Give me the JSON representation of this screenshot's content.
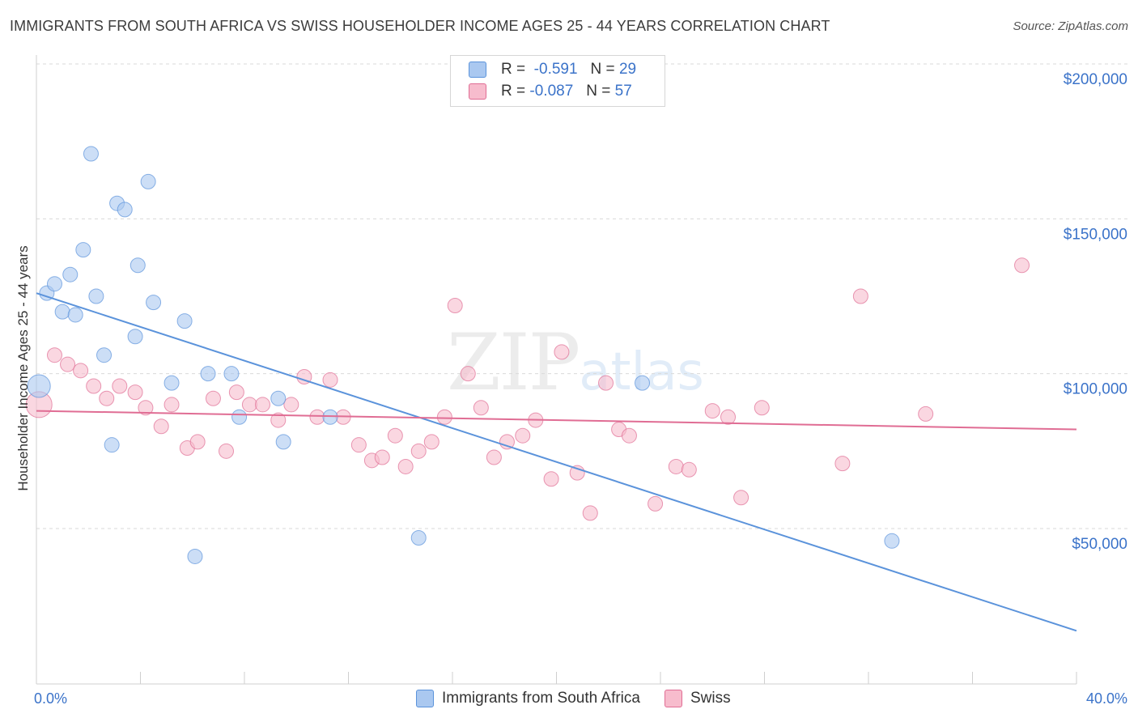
{
  "header": {
    "title": "IMMIGRANTS FROM SOUTH AFRICA VS SWISS HOUSEHOLDER INCOME AGES 25 - 44 YEARS CORRELATION CHART",
    "source": "Source: ZipAtlas.com"
  },
  "watermark": {
    "zip": "ZIP",
    "atlas": "atlas"
  },
  "legend": {
    "rows": [
      {
        "r_label": "R =",
        "r_value": "-0.591",
        "n_label": "N =",
        "n_value": "29",
        "color": "#aac8f0"
      },
      {
        "r_label": "R =",
        "r_value": "-0.087",
        "n_label": "N =",
        "n_value": "57",
        "color": "#f7bccd"
      }
    ]
  },
  "bottom_legend": {
    "items": [
      {
        "label": "Immigrants from South Africa",
        "color": "#aac8f0"
      },
      {
        "label": "Swiss",
        "color": "#f7bccd"
      }
    ]
  },
  "chart_data": {
    "type": "scatter",
    "title": "IMMIGRANTS FROM SOUTH AFRICA VS SWISS HOUSEHOLDER INCOME AGES 25 - 44 YEARS CORRELATION CHART",
    "xlabel": "",
    "ylabel": "Householder Income Ages 25 - 44 years",
    "xlim": [
      0,
      40
    ],
    "ylim": [
      5000,
      210000
    ],
    "x_tick_labels": [
      "0.0%",
      "40.0%"
    ],
    "y_ticks": [
      50000,
      100000,
      150000,
      200000
    ],
    "y_tick_labels": [
      "$50,000",
      "$100,000",
      "$150,000",
      "$200,000"
    ],
    "grid": true,
    "series": [
      {
        "name": "Immigrants from South Africa",
        "color": "#5b93db",
        "fill": "#aac8f0",
        "trend": {
          "x": [
            0,
            40
          ],
          "y": [
            126000,
            17000
          ]
        },
        "points": [
          [
            0.1,
            96000,
            14
          ],
          [
            0.4,
            126000,
            9
          ],
          [
            0.7,
            129000,
            9
          ],
          [
            1.0,
            120000,
            9
          ],
          [
            1.3,
            132000,
            9
          ],
          [
            1.5,
            119000,
            9
          ],
          [
            1.8,
            140000,
            9
          ],
          [
            2.1,
            171000,
            9
          ],
          [
            2.3,
            125000,
            9
          ],
          [
            2.6,
            106000,
            9
          ],
          [
            2.9,
            77000,
            9
          ],
          [
            3.1,
            155000,
            9
          ],
          [
            3.4,
            153000,
            9
          ],
          [
            3.8,
            112000,
            9
          ],
          [
            3.9,
            135000,
            9
          ],
          [
            4.3,
            162000,
            9
          ],
          [
            4.5,
            123000,
            9
          ],
          [
            5.2,
            97000,
            9
          ],
          [
            5.7,
            117000,
            9
          ],
          [
            6.1,
            41000,
            9
          ],
          [
            6.6,
            100000,
            9
          ],
          [
            7.5,
            100000,
            9
          ],
          [
            7.8,
            86000,
            9
          ],
          [
            9.3,
            92000,
            9
          ],
          [
            9.5,
            78000,
            9
          ],
          [
            11.3,
            86000,
            9
          ],
          [
            14.7,
            47000,
            9
          ],
          [
            23.3,
            97000,
            9
          ],
          [
            32.9,
            46000,
            9
          ]
        ]
      },
      {
        "name": "Swiss",
        "color": "#e06d94",
        "fill": "#f7bccd",
        "trend": {
          "x": [
            0,
            40
          ],
          "y": [
            88000,
            82000
          ]
        },
        "points": [
          [
            0.1,
            90000,
            16
          ],
          [
            0.7,
            106000,
            9
          ],
          [
            1.2,
            103000,
            9
          ],
          [
            1.7,
            101000,
            9
          ],
          [
            2.2,
            96000,
            9
          ],
          [
            2.7,
            92000,
            9
          ],
          [
            3.2,
            96000,
            9
          ],
          [
            3.8,
            94000,
            9
          ],
          [
            4.2,
            89000,
            9
          ],
          [
            4.8,
            83000,
            9
          ],
          [
            5.2,
            90000,
            9
          ],
          [
            5.8,
            76000,
            9
          ],
          [
            6.2,
            78000,
            9
          ],
          [
            6.8,
            92000,
            9
          ],
          [
            7.3,
            75000,
            9
          ],
          [
            7.7,
            94000,
            9
          ],
          [
            8.2,
            90000,
            9
          ],
          [
            8.7,
            90000,
            9
          ],
          [
            9.3,
            85000,
            9
          ],
          [
            9.8,
            90000,
            9
          ],
          [
            10.3,
            99000,
            9
          ],
          [
            10.8,
            86000,
            9
          ],
          [
            11.3,
            98000,
            9
          ],
          [
            11.8,
            86000,
            9
          ],
          [
            12.4,
            77000,
            9
          ],
          [
            12.9,
            72000,
            9
          ],
          [
            13.3,
            73000,
            9
          ],
          [
            13.8,
            80000,
            9
          ],
          [
            14.2,
            70000,
            9
          ],
          [
            14.7,
            75000,
            9
          ],
          [
            15.2,
            78000,
            9
          ],
          [
            15.7,
            86000,
            9
          ],
          [
            16.1,
            122000,
            9
          ],
          [
            16.6,
            100000,
            9
          ],
          [
            17.1,
            89000,
            9
          ],
          [
            17.6,
            73000,
            9
          ],
          [
            18.1,
            78000,
            9
          ],
          [
            18.7,
            80000,
            9
          ],
          [
            19.2,
            85000,
            9
          ],
          [
            19.8,
            66000,
            9
          ],
          [
            20.2,
            107000,
            9
          ],
          [
            20.8,
            68000,
            9
          ],
          [
            21.3,
            55000,
            9
          ],
          [
            21.9,
            97000,
            9
          ],
          [
            22.4,
            82000,
            9
          ],
          [
            22.8,
            80000,
            9
          ],
          [
            23.8,
            58000,
            9
          ],
          [
            24.6,
            70000,
            9
          ],
          [
            25.1,
            69000,
            9
          ],
          [
            26.0,
            88000,
            9
          ],
          [
            26.6,
            86000,
            9
          ],
          [
            27.1,
            60000,
            9
          ],
          [
            27.9,
            89000,
            9
          ],
          [
            31.0,
            71000,
            9
          ],
          [
            31.7,
            125000,
            9
          ],
          [
            34.2,
            87000,
            9
          ],
          [
            37.9,
            135000,
            9
          ]
        ]
      }
    ]
  }
}
